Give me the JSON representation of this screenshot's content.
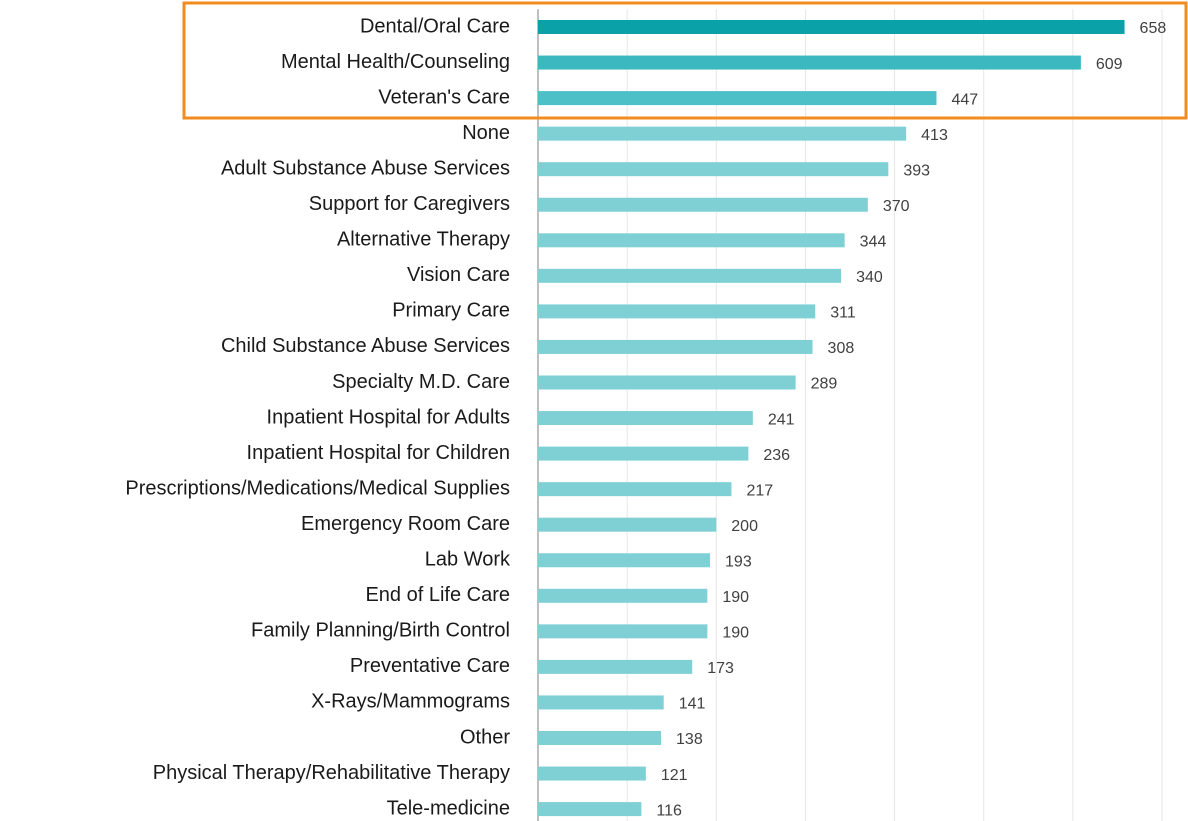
{
  "chart_data": {
    "type": "hbar",
    "categories": [
      "Dental/Oral Care",
      "Mental Health/Counseling",
      "Veteran's Care",
      "None",
      "Adult Substance Abuse Services",
      "Support for Caregivers",
      "Alternative Therapy",
      "Vision Care",
      "Primary Care",
      "Child Substance Abuse Services",
      "Specialty M.D. Care",
      "Inpatient Hospital for Adults",
      "Inpatient Hospital for Children",
      "Prescriptions/Medications/Medical Supplies",
      "Emergency Room Care",
      "Lab Work",
      "End of Life Care",
      "Family Planning/Birth Control",
      "Preventative Care",
      "X-Rays/Mammograms",
      "Other",
      "Physical Therapy/Rehabilitative Therapy",
      "Tele-medicine"
    ],
    "values": [
      658,
      609,
      447,
      413,
      393,
      370,
      344,
      340,
      311,
      308,
      289,
      241,
      236,
      217,
      200,
      193,
      190,
      190,
      173,
      141,
      138,
      121,
      116
    ],
    "colors": [
      "#0aa1a9",
      "#3bb8c0",
      "#4dbfc6",
      "#7fd0d5",
      "#7fd0d5",
      "#7fd0d5",
      "#7fd0d5",
      "#7fd0d5",
      "#7fd0d5",
      "#7fd0d5",
      "#7fd0d5",
      "#7fd0d5",
      "#7fd0d5",
      "#7fd0d5",
      "#7fd0d5",
      "#7fd0d5",
      "#7fd0d5",
      "#7fd0d5",
      "#7fd0d5",
      "#7fd0d5",
      "#7fd0d5",
      "#7fd0d5",
      "#7fd0d5"
    ],
    "xlim": [
      0,
      700
    ],
    "xticks": [
      0,
      100,
      200,
      300,
      400,
      500,
      600,
      700
    ],
    "grid": true
  }
}
